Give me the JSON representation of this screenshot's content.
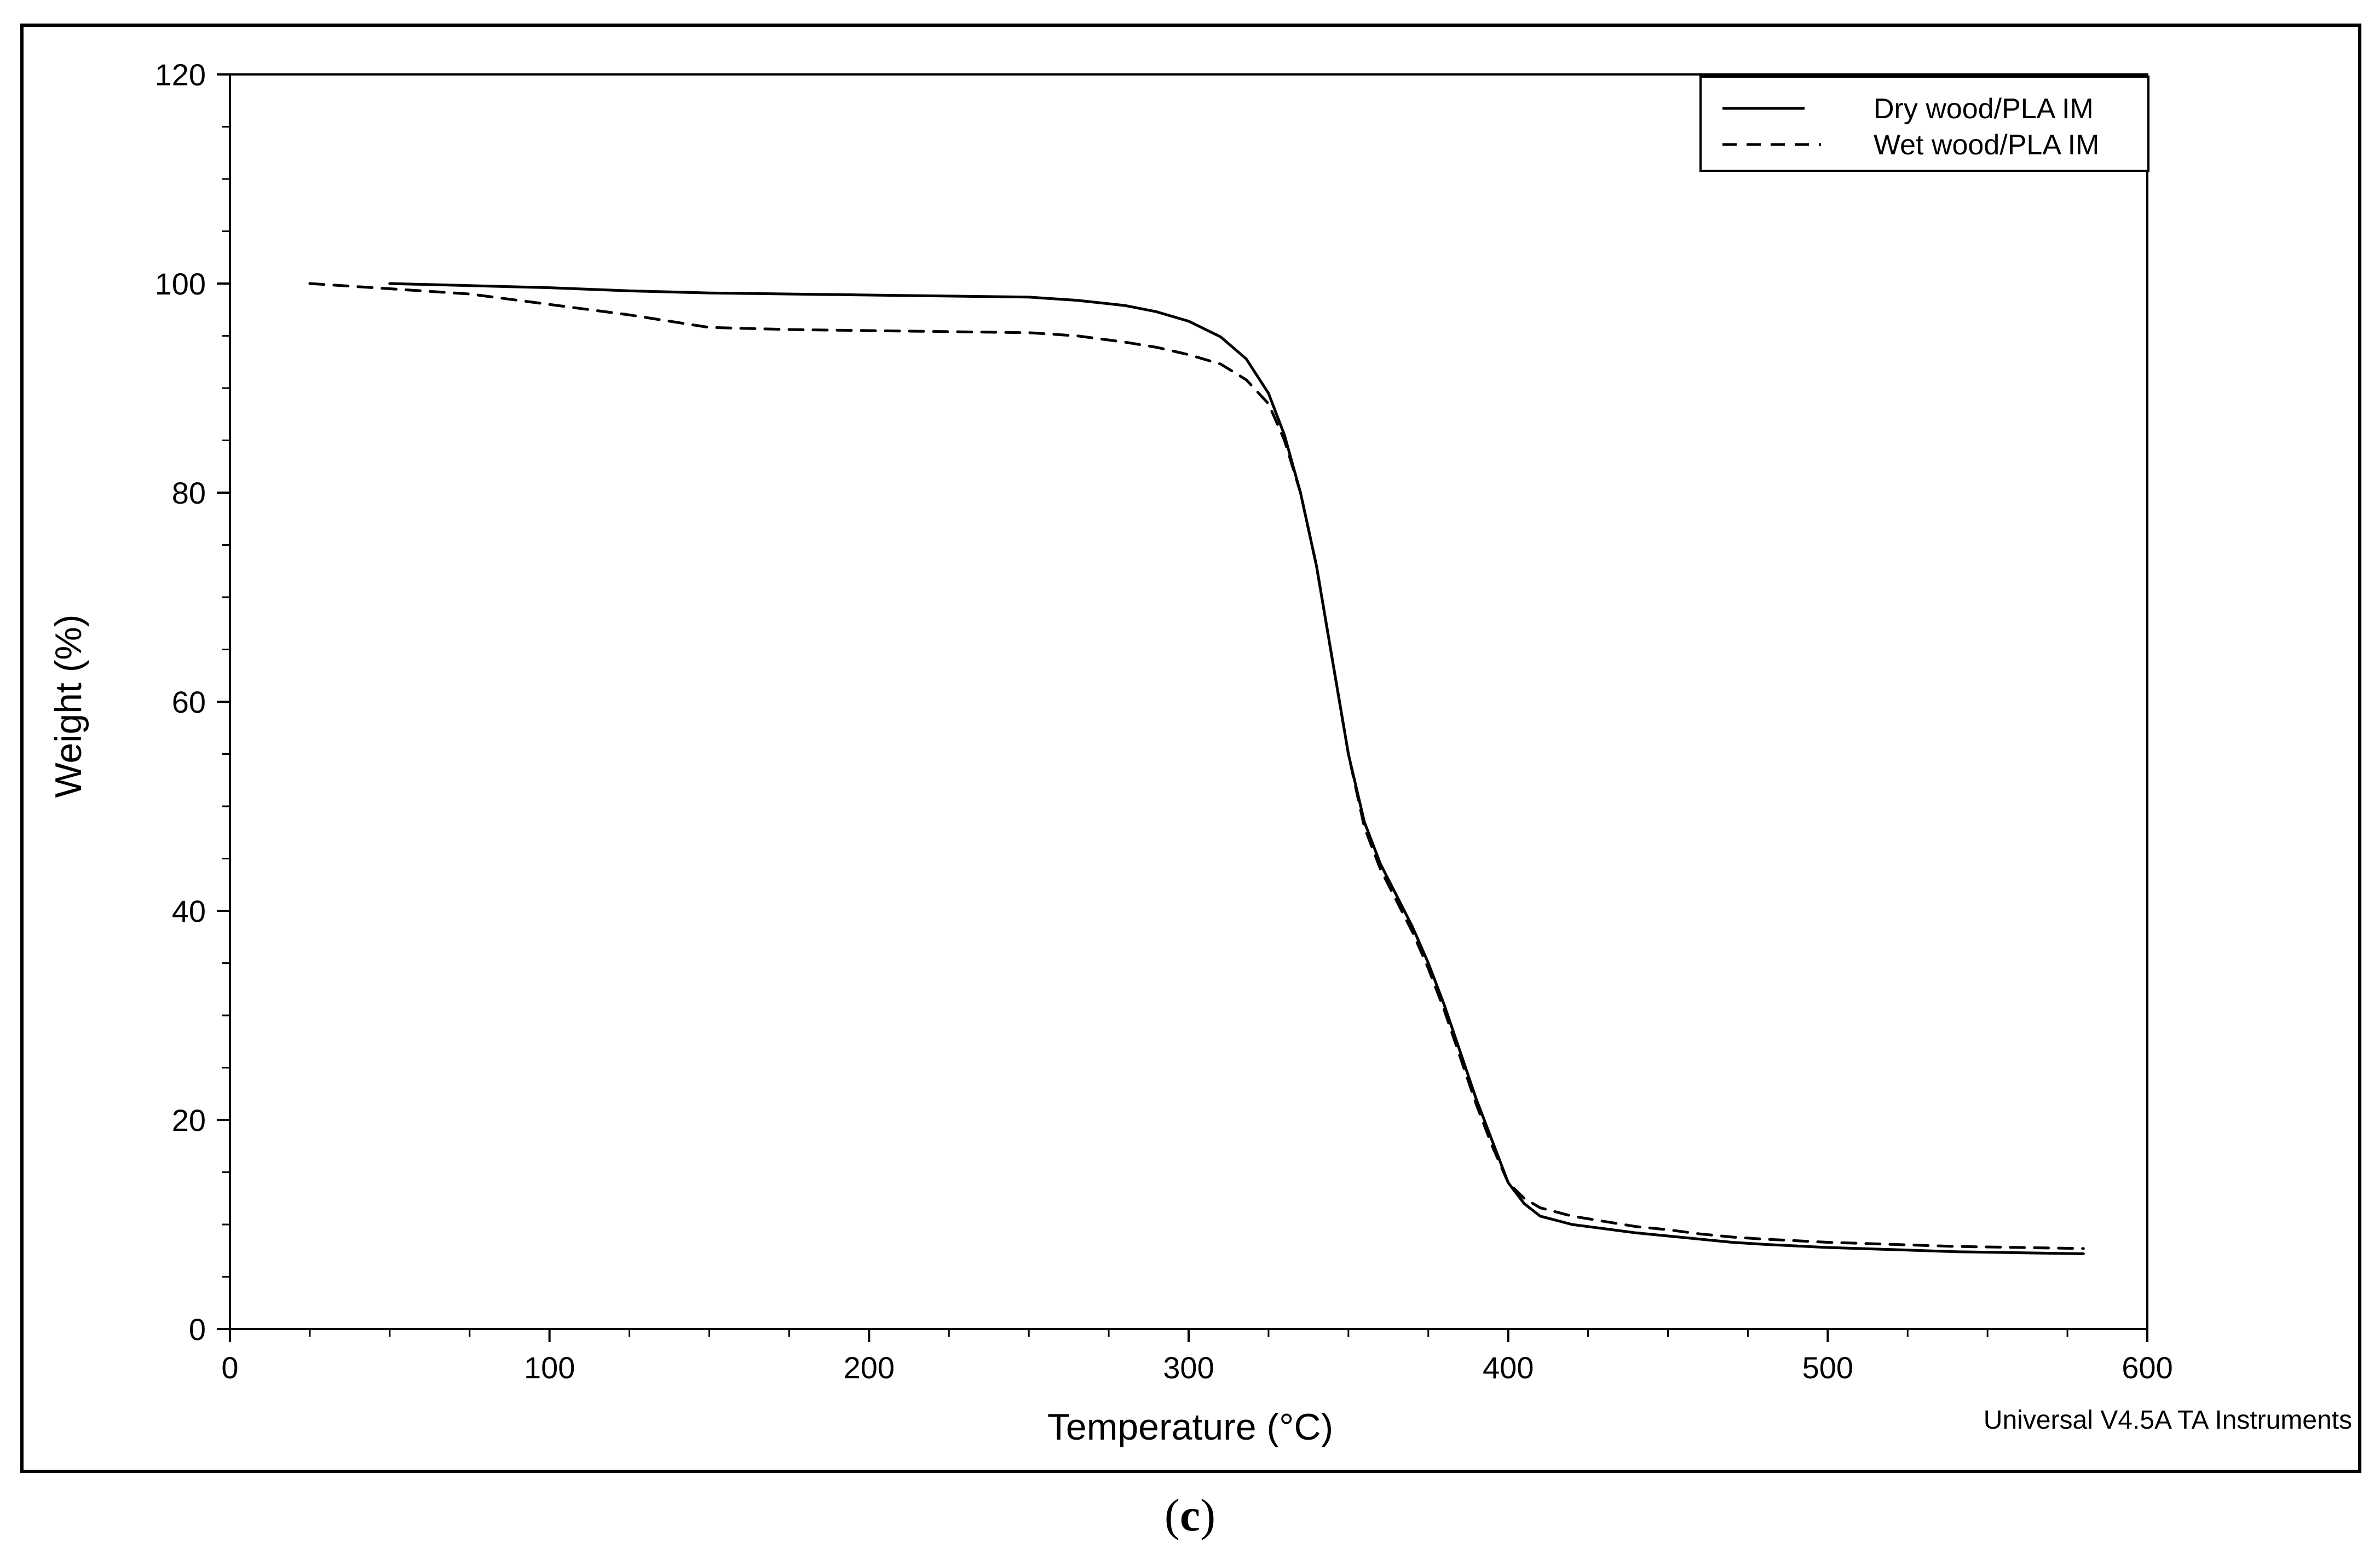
{
  "chart_data": {
    "type": "line",
    "xlabel": "Temperature (°C)",
    "ylabel": "Weight (%)",
    "xlim": [
      0,
      600
    ],
    "ylim": [
      0,
      120
    ],
    "xticks": [
      0,
      100,
      200,
      300,
      400,
      500,
      600
    ],
    "yticks": [
      0,
      20,
      40,
      60,
      80,
      100,
      120
    ],
    "grid": false,
    "legend_position": "top-right",
    "series": [
      {
        "name": "Dry wood/PLA IM",
        "style": "solid",
        "x": [
          50,
          75,
          100,
          125,
          150,
          175,
          200,
          225,
          250,
          265,
          280,
          290,
          300,
          310,
          318,
          325,
          330,
          335,
          340,
          345,
          350,
          355,
          360,
          365,
          370,
          375,
          380,
          385,
          390,
          395,
          400,
          405,
          410,
          420,
          430,
          440,
          450,
          460,
          470,
          480,
          500,
          520,
          540,
          560,
          580
        ],
        "y": [
          100,
          99.8,
          99.6,
          99.3,
          99.1,
          99.0,
          98.9,
          98.8,
          98.7,
          98.4,
          97.9,
          97.3,
          96.4,
          94.9,
          92.8,
          89.5,
          85.5,
          80.0,
          73.0,
          64.0,
          55.0,
          48.5,
          44.5,
          41.5,
          38.5,
          35.0,
          31.0,
          26.5,
          22.0,
          18.0,
          14.0,
          12.0,
          10.8,
          10.0,
          9.6,
          9.2,
          8.9,
          8.6,
          8.3,
          8.1,
          7.8,
          7.6,
          7.4,
          7.3,
          7.2
        ]
      },
      {
        "name": "Wet wood/PLA IM",
        "style": "dashed",
        "x": [
          25,
          50,
          75,
          100,
          125,
          150,
          175,
          200,
          225,
          250,
          265,
          280,
          290,
          300,
          310,
          318,
          325,
          330,
          335,
          340,
          345,
          350,
          355,
          360,
          365,
          370,
          375,
          380,
          385,
          390,
          395,
          400,
          405,
          410,
          420,
          430,
          440,
          450,
          460,
          470,
          480,
          500,
          520,
          540,
          560,
          580
        ],
        "y": [
          100,
          99.5,
          99.0,
          98.0,
          97.0,
          95.8,
          95.6,
          95.5,
          95.4,
          95.3,
          95.0,
          94.4,
          93.9,
          93.2,
          92.3,
          90.8,
          88.5,
          85.0,
          80.0,
          73.0,
          64.0,
          55.0,
          48.0,
          44.0,
          41.0,
          38.0,
          34.5,
          30.5,
          26.0,
          21.5,
          17.5,
          14.0,
          12.5,
          11.6,
          10.8,
          10.3,
          9.8,
          9.5,
          9.1,
          8.8,
          8.6,
          8.3,
          8.1,
          7.9,
          7.8,
          7.7
        ]
      }
    ],
    "annotation": "Universal V4.5A TA Instruments"
  },
  "caption": {
    "open": "(",
    "letter": "c",
    "close": ")"
  },
  "colors": {
    "line": "#000000",
    "frame": "#000000",
    "background": "#ffffff"
  }
}
